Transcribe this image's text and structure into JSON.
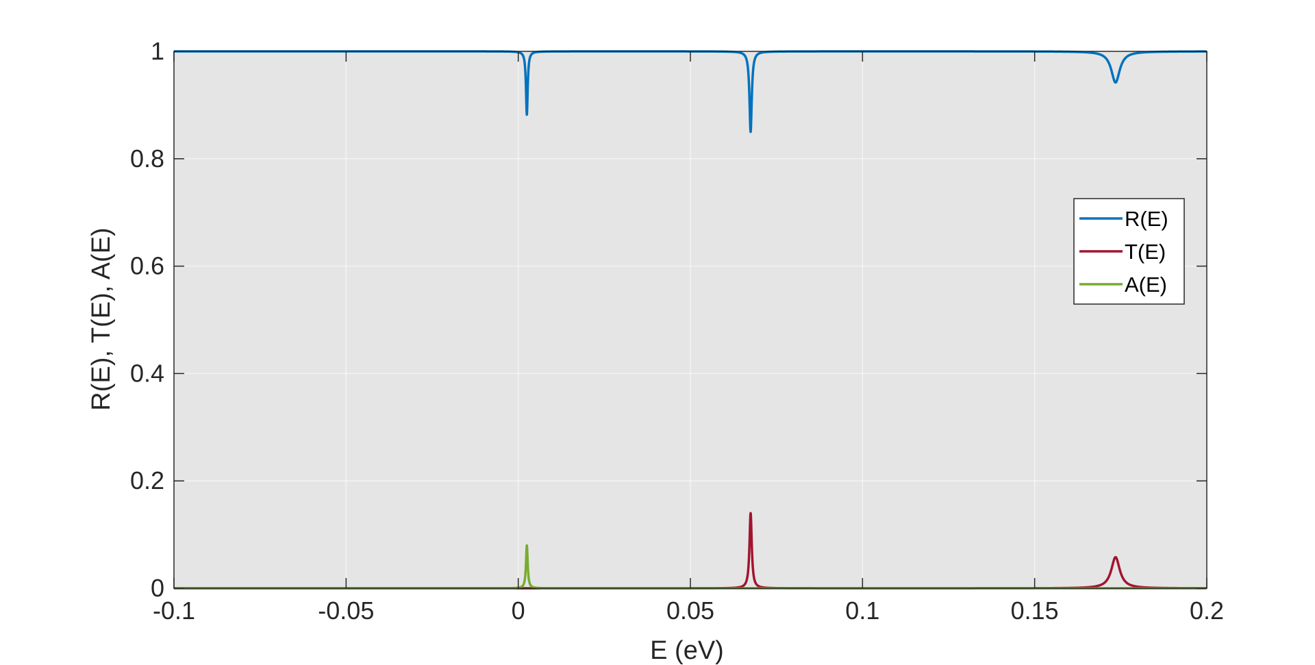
{
  "chart_data": {
    "type": "line",
    "title": "",
    "xlabel": "E (eV)",
    "ylabel": "R(E), T(E), A(E)",
    "xlim": [
      -0.1,
      0.2
    ],
    "ylim": [
      0,
      1
    ],
    "xticks": [
      -0.1,
      -0.05,
      0,
      0.05,
      0.1,
      0.15,
      0.2
    ],
    "xtick_labels": [
      "-0.1",
      "-0.05",
      "0",
      "0.05",
      "0.1",
      "0.15",
      "0.2"
    ],
    "yticks": [
      0,
      0.2,
      0.4,
      0.6,
      0.8,
      1
    ],
    "ytick_labels": [
      "0",
      "0.2",
      "0.4",
      "0.6",
      "0.8",
      "1"
    ],
    "grid": true,
    "legend_position": "right",
    "background_color": "#e5e5e5",
    "series": [
      {
        "name": "R(E)",
        "color": "#0072bd",
        "baseline": 1.0,
        "features": [
          {
            "center": 0.0025,
            "width": 0.0003,
            "amplitude": -0.118
          },
          {
            "center": 0.0675,
            "width": 0.0004,
            "amplitude": -0.15
          },
          {
            "center": 0.1735,
            "width": 0.0015,
            "amplitude": -0.058
          }
        ]
      },
      {
        "name": "T(E)",
        "color": "#a2142f",
        "baseline": 0.0,
        "features": [
          {
            "center": 0.0675,
            "width": 0.0004,
            "amplitude": 0.14
          },
          {
            "center": 0.1735,
            "width": 0.0015,
            "amplitude": 0.058
          }
        ]
      },
      {
        "name": "A(E)",
        "color": "#77ac30",
        "baseline": 0.0,
        "features": [
          {
            "center": 0.0025,
            "width": 0.0003,
            "amplitude": 0.08
          }
        ]
      }
    ]
  }
}
